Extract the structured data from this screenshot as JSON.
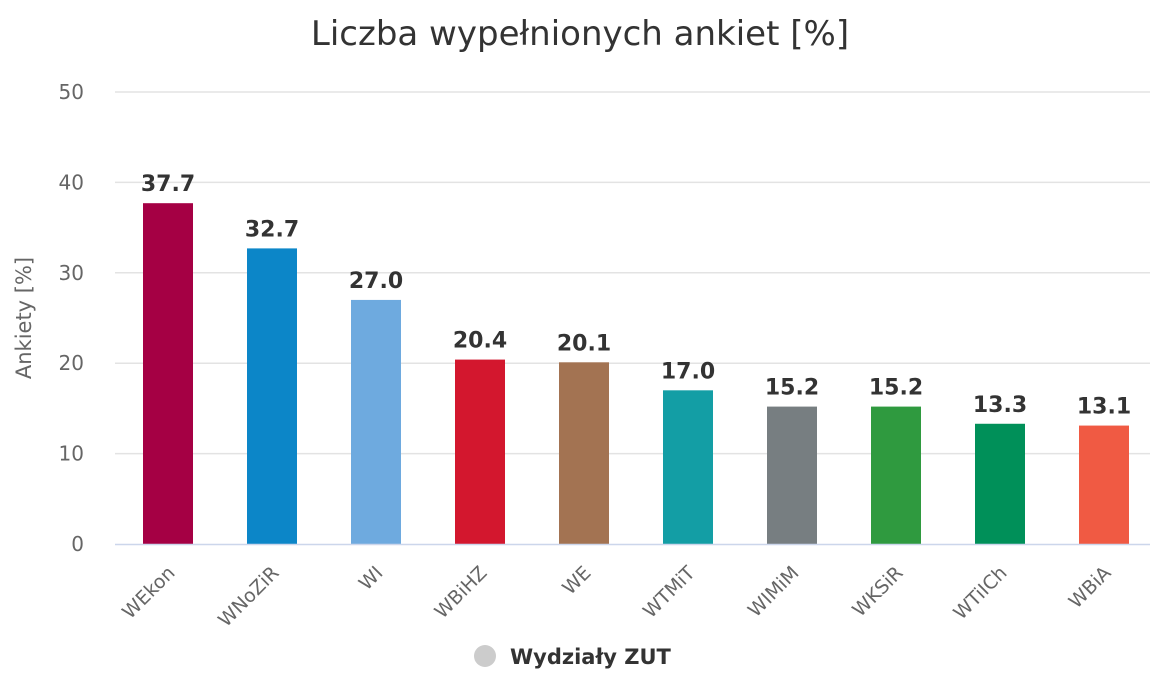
{
  "chart_data": {
    "type": "bar",
    "title": "Liczba wypełnionych ankiet [%]",
    "ylabel": "Ankiety [%]",
    "xlabel": "",
    "ylim": [
      0,
      50
    ],
    "yticks": [
      0,
      10,
      20,
      30,
      40,
      50
    ],
    "grid": true,
    "legend_position": "bottom-center",
    "categories": [
      "WEkon",
      "WNoZiR",
      "WI",
      "WBiHZ",
      "WE",
      "WTMiT",
      "WIMiM",
      "WKSiR",
      "WTiICh",
      "WBiA"
    ],
    "series": [
      {
        "name": "Wydziały ZUT",
        "values": [
          37.7,
          32.7,
          27.0,
          20.4,
          20.1,
          17.0,
          15.2,
          15.2,
          13.3,
          13.1
        ],
        "data_labels": [
          "37.7",
          "32.7",
          "27.0",
          "20.4",
          "20.1",
          "17.0",
          "15.2",
          "15.2",
          "13.3",
          "13.1"
        ],
        "colors": [
          "#a50044",
          "#0c86c8",
          "#6eaadf",
          "#d3172e",
          "#a37352",
          "#139ea5",
          "#777e81",
          "#2f9a3f",
          "#009059",
          "#f05a43"
        ]
      }
    ],
    "legend_marker_color": "#cccccc"
  }
}
